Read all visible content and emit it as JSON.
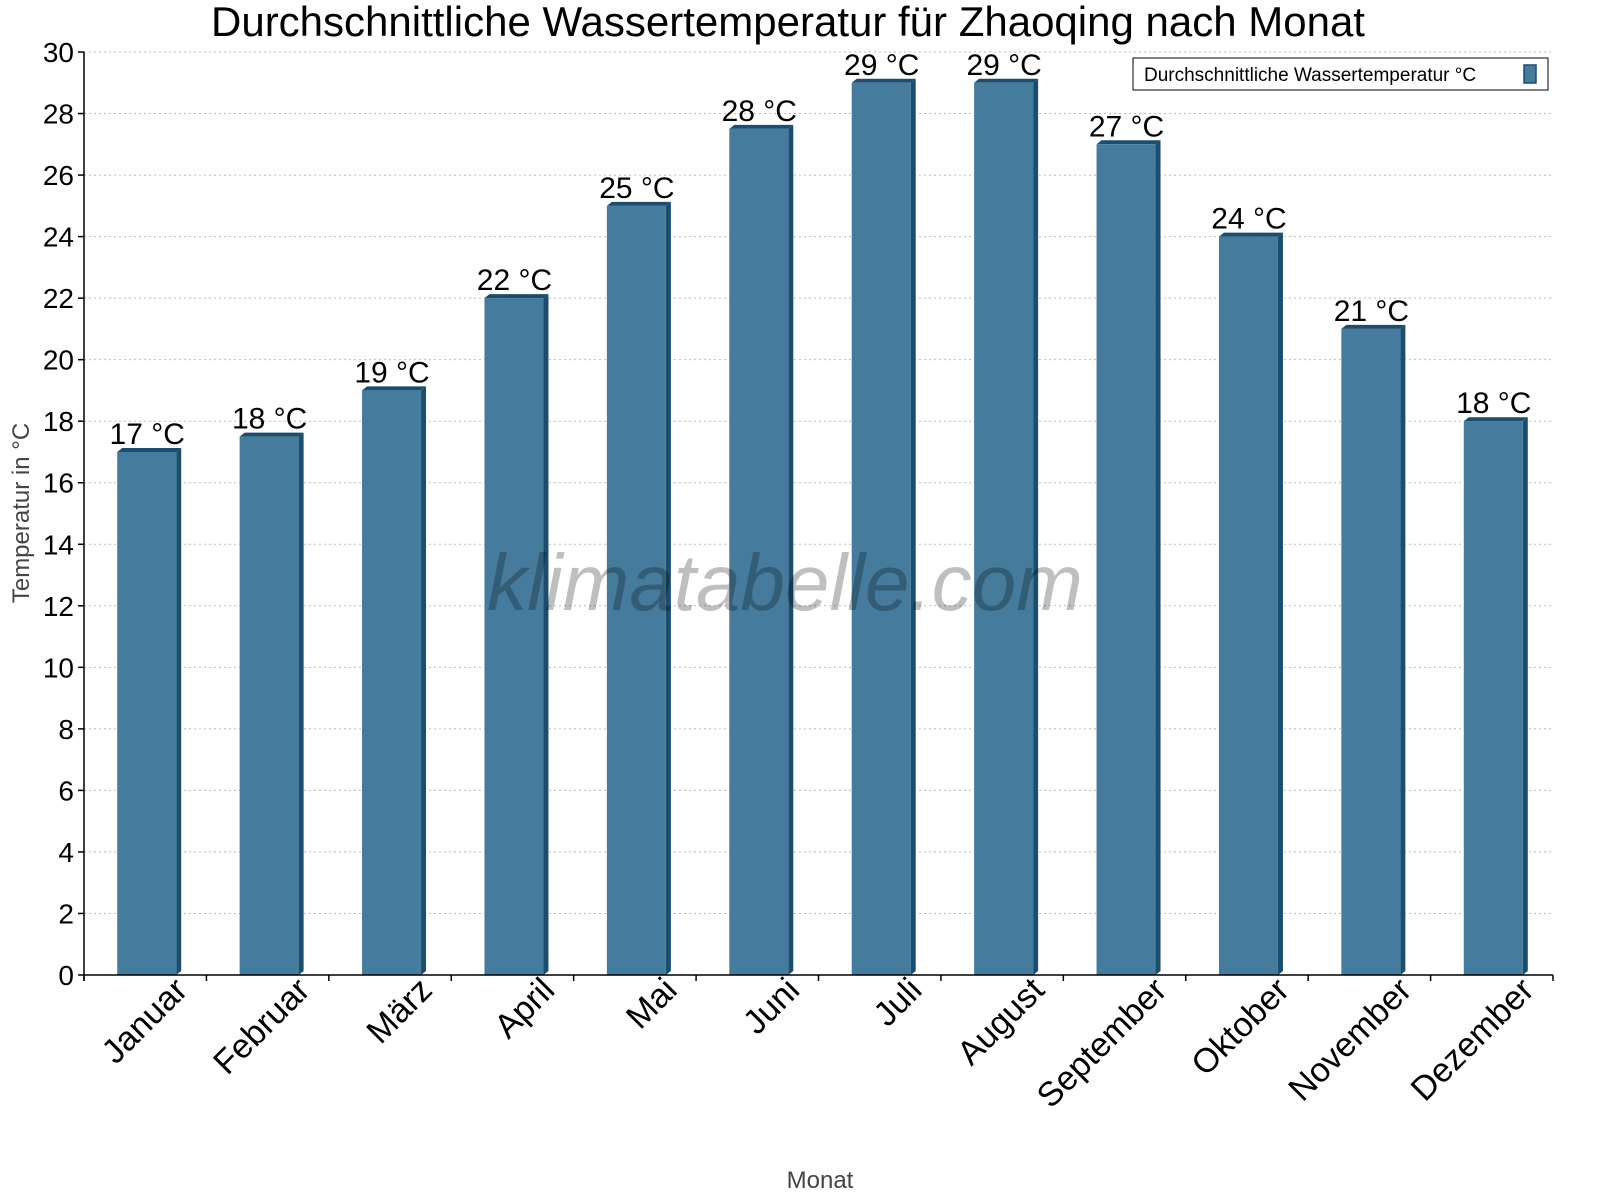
{
  "chart_data": {
    "type": "bar",
    "title": "Durchschnittliche Wassertemperatur für Zhaoqing nach Monat",
    "xlabel": "Monat",
    "ylabel": "Temperatur in °C",
    "ylim": [
      0,
      30
    ],
    "yticks": [
      0,
      2,
      4,
      6,
      8,
      10,
      12,
      14,
      16,
      18,
      20,
      22,
      24,
      26,
      28,
      30
    ],
    "grid": true,
    "legend_position": "top-right",
    "categories": [
      "Januar",
      "Februar",
      "März",
      "April",
      "Mai",
      "Juni",
      "Juli",
      "August",
      "September",
      "Oktober",
      "November",
      "Dezember"
    ],
    "series": [
      {
        "name": "Durchschnittliche Wassertemperatur °C",
        "values": [
          17,
          17.5,
          19,
          22,
          25,
          27.5,
          29,
          29,
          27,
          24,
          21,
          18
        ],
        "labels": [
          "17 °C",
          "18 °C",
          "19 °C",
          "22 °C",
          "25 °C",
          "28 °C",
          "29 °C",
          "29 °C",
          "27 °C",
          "24 °C",
          "21 °C",
          "18 °C"
        ],
        "color": "#457b9d",
        "shade_color": "#1a4d6e"
      }
    ],
    "watermark": "klimatabelle.com"
  }
}
